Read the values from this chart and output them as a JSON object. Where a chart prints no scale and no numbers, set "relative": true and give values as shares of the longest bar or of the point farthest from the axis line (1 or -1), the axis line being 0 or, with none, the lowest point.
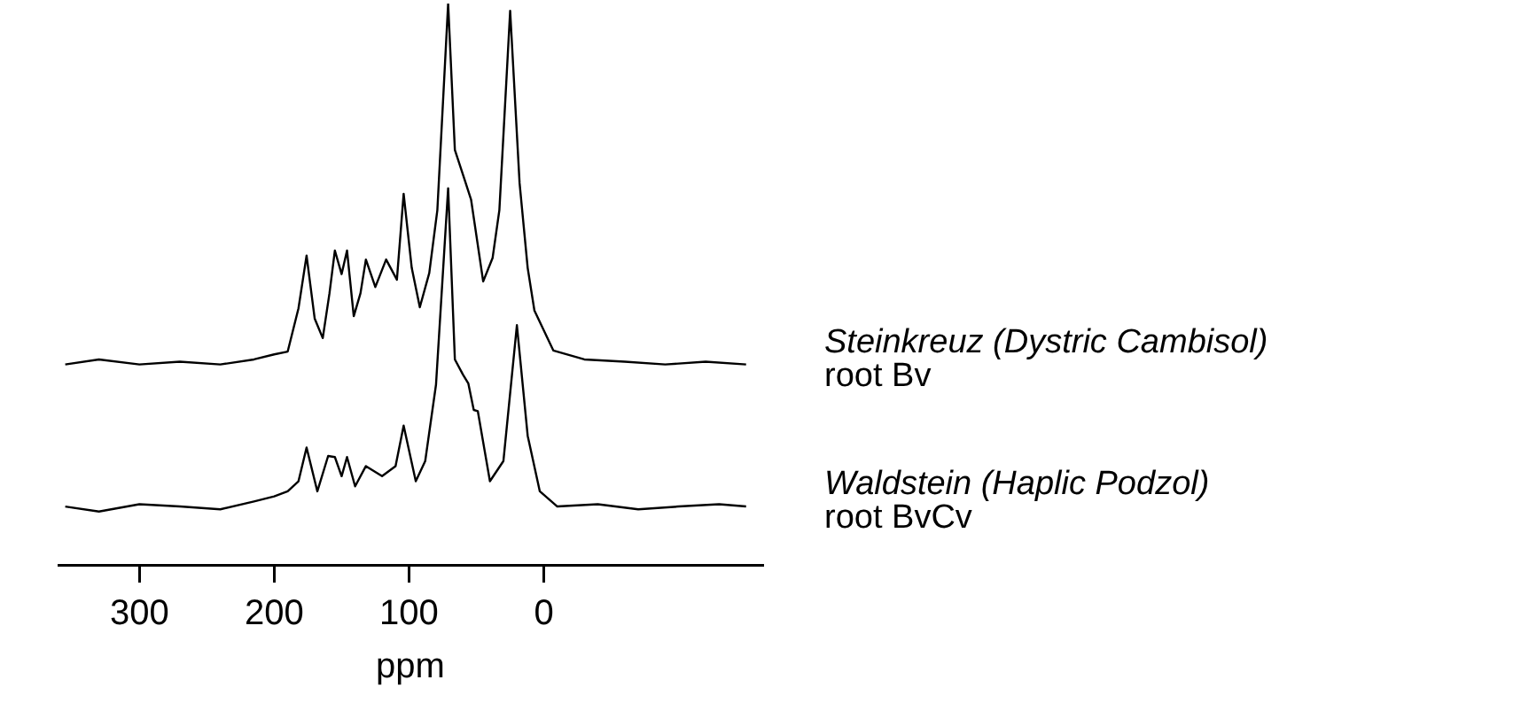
{
  "chart_data": {
    "type": "line",
    "relative": true,
    "xlabel": "ppm",
    "xlim": [
      360,
      -162
    ],
    "xticks": [
      300,
      200,
      100,
      0
    ],
    "grid": false,
    "legend": false,
    "tick_labels": "x",
    "marker": "none",
    "line_style": "solid",
    "series": [
      {
        "name": "Steinkreuz (Dystric Cambisol)",
        "color": "#000000",
        "x": [
          355,
          330,
          300,
          270,
          240,
          215,
          200,
          190,
          182,
          176,
          170,
          164,
          159,
          155,
          150,
          146,
          141,
          136,
          132,
          125,
          117,
          109,
          104,
          98,
          92,
          85,
          79,
          71,
          66,
          59,
          54,
          45,
          38,
          33,
          25,
          18,
          12,
          7,
          -7,
          -30,
          -60,
          -90,
          -120,
          -150
        ],
        "values": [
          0.357,
          0.366,
          0.357,
          0.362,
          0.357,
          0.366,
          0.375,
          0.38,
          0.457,
          0.551,
          0.439,
          0.404,
          0.484,
          0.56,
          0.518,
          0.56,
          0.443,
          0.484,
          0.544,
          0.495,
          0.544,
          0.508,
          0.661,
          0.529,
          0.459,
          0.52,
          0.632,
          1.0,
          0.739,
          0.688,
          0.651,
          0.505,
          0.547,
          0.632,
          0.987,
          0.68,
          0.529,
          0.453,
          0.382,
          0.366,
          0.362,
          0.357,
          0.362,
          0.357
        ]
      },
      {
        "name": "Waldstein (Haplic Podzol)",
        "color": "#000000",
        "x": [
          355,
          330,
          300,
          270,
          240,
          215,
          200,
          190,
          182,
          176,
          168,
          160,
          155,
          150,
          146,
          140,
          132,
          120,
          110,
          104,
          95,
          88,
          80,
          71,
          66,
          60,
          56,
          52,
          49,
          40,
          30,
          20,
          12,
          3,
          -10,
          -40,
          -70,
          -100,
          -130,
          -150
        ],
        "values": [
          0.104,
          0.095,
          0.108,
          0.104,
          0.099,
          0.113,
          0.122,
          0.131,
          0.149,
          0.209,
          0.131,
          0.194,
          0.192,
          0.158,
          0.192,
          0.14,
          0.176,
          0.158,
          0.176,
          0.248,
          0.149,
          0.185,
          0.321,
          0.671,
          0.366,
          0.339,
          0.323,
          0.276,
          0.274,
          0.149,
          0.185,
          0.427,
          0.23,
          0.131,
          0.104,
          0.108,
          0.099,
          0.104,
          0.108,
          0.104
        ]
      }
    ],
    "annotations": [
      "root Bv",
      "root BvCv"
    ]
  }
}
